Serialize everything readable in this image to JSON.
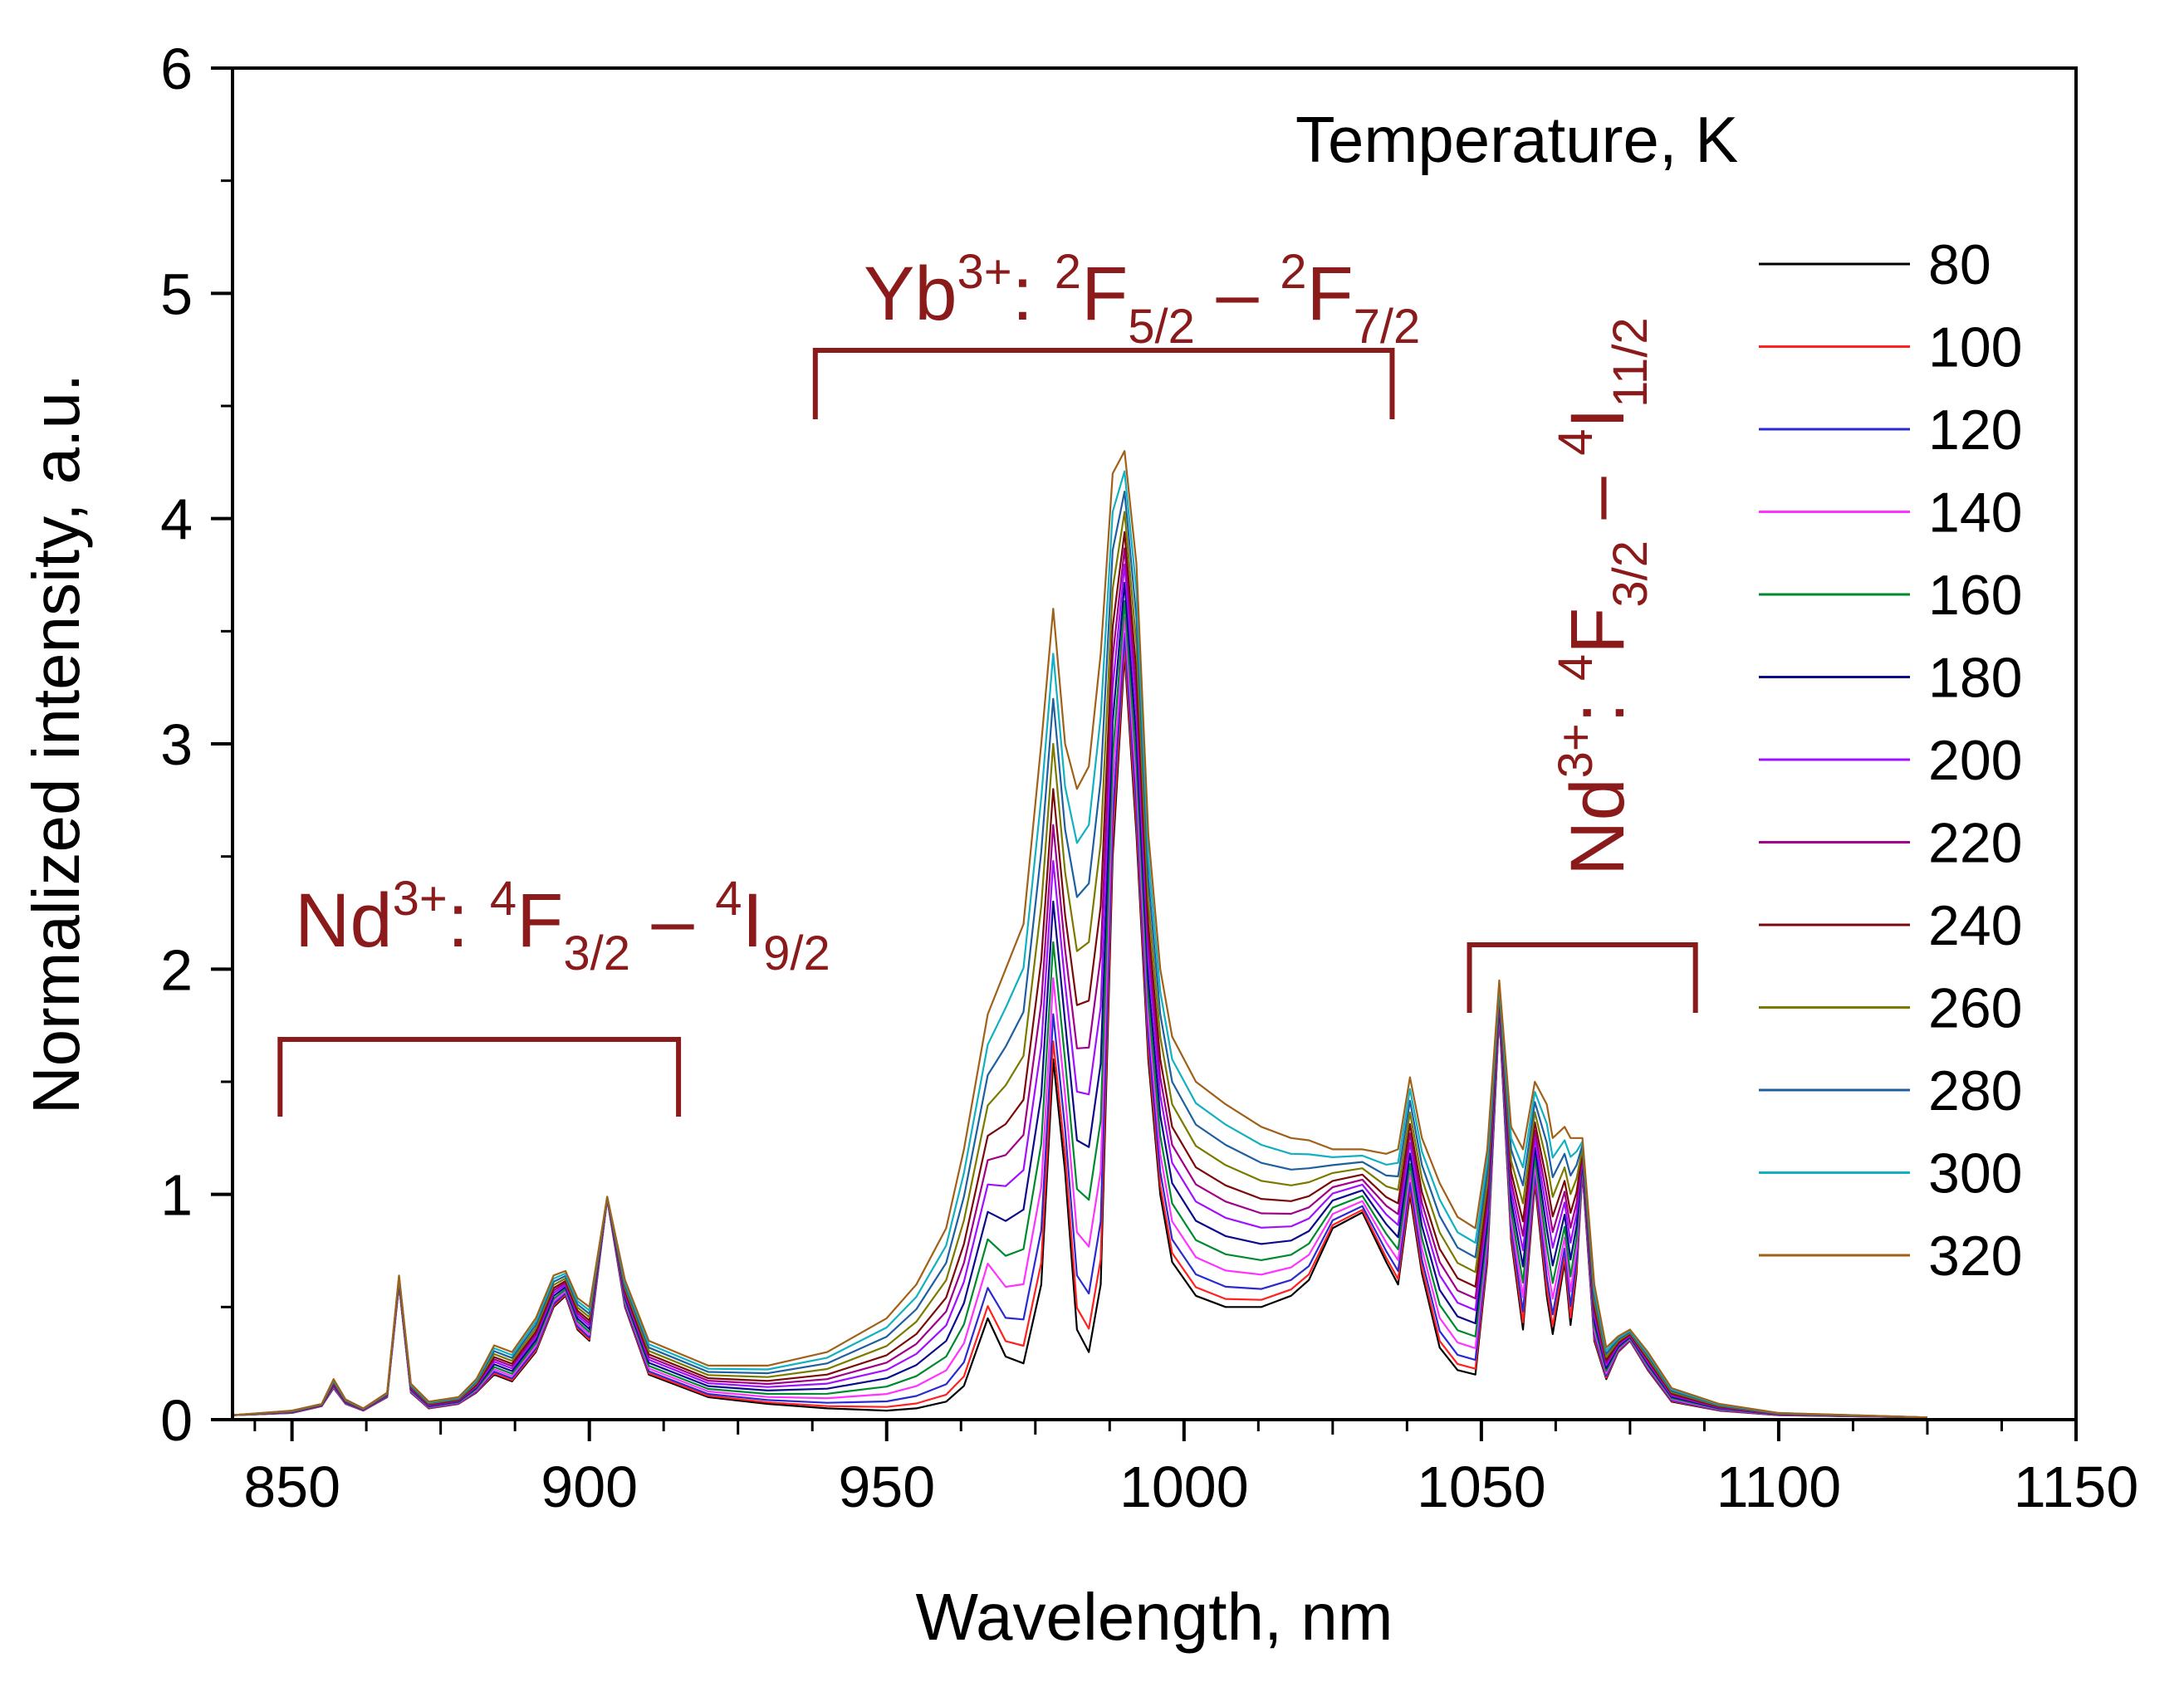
{
  "chart_data": {
    "type": "line",
    "xlabel": "Wavelength, nm",
    "ylabel": "Normalized intensity, a.u.",
    "xlim": [
      840,
      1150
    ],
    "ylim": [
      0,
      6
    ],
    "x_ticks": [
      "850",
      "900",
      "950",
      "1000",
      "1050",
      "1100",
      "1150"
    ],
    "y_ticks": [
      "0",
      "1",
      "2",
      "3",
      "4",
      "5",
      "6"
    ],
    "legend_title": "Temperature, K",
    "legend_position": "right",
    "series": [
      {
        "name": "80",
        "color": "#000000",
        "t": 0.0
      },
      {
        "name": "100",
        "color": "#ff2020",
        "t": 0.04
      },
      {
        "name": "120",
        "color": "#2a2ad0",
        "t": 0.1
      },
      {
        "name": "140",
        "color": "#ff33ff",
        "t": 0.18
      },
      {
        "name": "160",
        "color": "#008a2e",
        "t": 0.26
      },
      {
        "name": "180",
        "color": "#0a0a8a",
        "t": 0.35
      },
      {
        "name": "200",
        "color": "#a010ff",
        "t": 0.44
      },
      {
        "name": "220",
        "color": "#a0008a",
        "t": 0.52
      },
      {
        "name": "240",
        "color": "#7a0a0a",
        "t": 0.6
      },
      {
        "name": "260",
        "color": "#7a7a00",
        "t": 0.7
      },
      {
        "name": "280",
        "color": "#1e5fa0",
        "t": 0.8
      },
      {
        "name": "300",
        "color": "#12b0c0",
        "t": 0.9
      },
      {
        "name": "320",
        "color": "#a06018",
        "t": 1.0
      }
    ],
    "profile_low": [
      [
        840,
        0.02
      ],
      [
        850,
        0.03
      ],
      [
        855,
        0.06
      ],
      [
        857,
        0.14
      ],
      [
        859,
        0.07
      ],
      [
        862,
        0.04
      ],
      [
        866,
        0.1
      ],
      [
        868,
        0.6
      ],
      [
        870,
        0.12
      ],
      [
        873,
        0.05
      ],
      [
        878,
        0.07
      ],
      [
        881,
        0.12
      ],
      [
        884,
        0.2
      ],
      [
        887,
        0.17
      ],
      [
        891,
        0.3
      ],
      [
        894,
        0.5
      ],
      [
        896,
        0.55
      ],
      [
        898,
        0.4
      ],
      [
        900,
        0.35
      ],
      [
        903,
        0.98
      ],
      [
        906,
        0.5
      ],
      [
        910,
        0.2
      ],
      [
        920,
        0.1
      ],
      [
        930,
        0.07
      ],
      [
        940,
        0.05
      ],
      [
        950,
        0.04
      ],
      [
        955,
        0.05
      ],
      [
        960,
        0.08
      ],
      [
        963,
        0.15
      ],
      [
        967,
        0.45
      ],
      [
        970,
        0.28
      ],
      [
        973,
        0.25
      ],
      [
        976,
        0.6
      ],
      [
        978,
        1.6
      ],
      [
        980,
        1.1
      ],
      [
        982,
        0.4
      ],
      [
        984,
        0.3
      ],
      [
        986,
        0.6
      ],
      [
        988,
        2.5
      ],
      [
        990,
        3.4
      ],
      [
        992,
        2.6
      ],
      [
        994,
        1.6
      ],
      [
        996,
        1.0
      ],
      [
        998,
        0.7
      ],
      [
        1002,
        0.55
      ],
      [
        1007,
        0.5
      ],
      [
        1013,
        0.5
      ],
      [
        1018,
        0.55
      ],
      [
        1021,
        0.62
      ],
      [
        1025,
        0.85
      ],
      [
        1030,
        0.92
      ],
      [
        1034,
        0.7
      ],
      [
        1036,
        0.6
      ],
      [
        1038,
        1.0
      ],
      [
        1040,
        0.65
      ],
      [
        1043,
        0.32
      ],
      [
        1046,
        0.22
      ],
      [
        1049,
        0.2
      ],
      [
        1051,
        0.7
      ],
      [
        1053,
        1.8
      ],
      [
        1055,
        0.8
      ],
      [
        1057,
        0.4
      ],
      [
        1059,
        1.05
      ],
      [
        1061,
        0.55
      ],
      [
        1062,
        0.38
      ],
      [
        1064,
        0.7
      ],
      [
        1065,
        0.42
      ],
      [
        1066,
        0.65
      ],
      [
        1067,
        1.1
      ],
      [
        1069,
        0.35
      ],
      [
        1071,
        0.18
      ],
      [
        1073,
        0.3
      ],
      [
        1075,
        0.35
      ],
      [
        1078,
        0.22
      ],
      [
        1082,
        0.08
      ],
      [
        1090,
        0.04
      ],
      [
        1100,
        0.02
      ],
      [
        1125,
        0.01
      ]
    ],
    "profile_high": [
      [
        840,
        0.02
      ],
      [
        850,
        0.04
      ],
      [
        855,
        0.07
      ],
      [
        857,
        0.18
      ],
      [
        859,
        0.09
      ],
      [
        862,
        0.05
      ],
      [
        866,
        0.12
      ],
      [
        868,
        0.64
      ],
      [
        870,
        0.16
      ],
      [
        873,
        0.08
      ],
      [
        878,
        0.1
      ],
      [
        881,
        0.18
      ],
      [
        884,
        0.33
      ],
      [
        887,
        0.3
      ],
      [
        891,
        0.45
      ],
      [
        894,
        0.64
      ],
      [
        896,
        0.66
      ],
      [
        898,
        0.54
      ],
      [
        900,
        0.5
      ],
      [
        903,
        0.99
      ],
      [
        906,
        0.62
      ],
      [
        910,
        0.35
      ],
      [
        920,
        0.24
      ],
      [
        930,
        0.24
      ],
      [
        940,
        0.3
      ],
      [
        950,
        0.45
      ],
      [
        955,
        0.6
      ],
      [
        960,
        0.85
      ],
      [
        963,
        1.2
      ],
      [
        967,
        1.8
      ],
      [
        970,
        2.0
      ],
      [
        973,
        2.2
      ],
      [
        976,
        3.0
      ],
      [
        978,
        3.6
      ],
      [
        980,
        3.0
      ],
      [
        982,
        2.8
      ],
      [
        984,
        2.9
      ],
      [
        986,
        3.4
      ],
      [
        988,
        4.2
      ],
      [
        990,
        4.3
      ],
      [
        992,
        3.8
      ],
      [
        994,
        2.6
      ],
      [
        996,
        2.0
      ],
      [
        998,
        1.7
      ],
      [
        1002,
        1.5
      ],
      [
        1007,
        1.4
      ],
      [
        1013,
        1.3
      ],
      [
        1018,
        1.25
      ],
      [
        1021,
        1.24
      ],
      [
        1025,
        1.2
      ],
      [
        1030,
        1.2
      ],
      [
        1034,
        1.18
      ],
      [
        1036,
        1.2
      ],
      [
        1038,
        1.52
      ],
      [
        1040,
        1.25
      ],
      [
        1043,
        1.05
      ],
      [
        1046,
        0.9
      ],
      [
        1049,
        0.85
      ],
      [
        1051,
        1.2
      ],
      [
        1053,
        1.95
      ],
      [
        1055,
        1.3
      ],
      [
        1057,
        1.2
      ],
      [
        1059,
        1.5
      ],
      [
        1061,
        1.4
      ],
      [
        1062,
        1.25
      ],
      [
        1064,
        1.3
      ],
      [
        1065,
        1.25
      ],
      [
        1066,
        1.25
      ],
      [
        1067,
        1.25
      ],
      [
        1069,
        0.6
      ],
      [
        1071,
        0.32
      ],
      [
        1073,
        0.37
      ],
      [
        1075,
        0.4
      ],
      [
        1078,
        0.3
      ],
      [
        1082,
        0.14
      ],
      [
        1090,
        0.07
      ],
      [
        1100,
        0.03
      ],
      [
        1125,
        0.01
      ]
    ],
    "annotations": [
      {
        "ion": "Yb",
        "charge": "3+",
        "lower_left": "2",
        "term1": "F",
        "sub1": "5/2",
        "upper_left2": "2",
        "term2": "F",
        "sub2": "7/2",
        "bracket_x": [
          938,
          1035
        ]
      },
      {
        "ion": "Nd",
        "charge": "3+",
        "lower_left": "4",
        "term1": "F",
        "sub1": "3/2",
        "upper_left2": "4",
        "term2": "I",
        "sub2": "9/2",
        "bracket_x": [
          848,
          915
        ]
      },
      {
        "ion": "Nd",
        "charge": "3+",
        "lower_left": "4",
        "term1": "F",
        "sub1": "3/2",
        "upper_left2": "4",
        "term2": "I",
        "sub2": "11/2",
        "bracket_x": [
          1048,
          1086
        ]
      }
    ],
    "annotation_color": "#8b1a1a"
  }
}
